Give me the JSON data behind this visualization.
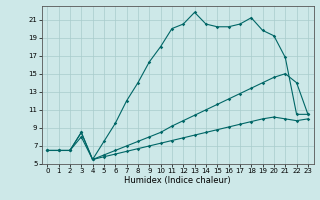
{
  "xlabel": "Humidex (Indice chaleur)",
  "background_color": "#cde8e8",
  "line_color": "#006666",
  "grid_color": "#a8cccc",
  "xlim": [
    -0.5,
    23.5
  ],
  "ylim": [
    5,
    22.5
  ],
  "xticks": [
    0,
    1,
    2,
    3,
    4,
    5,
    6,
    7,
    8,
    9,
    10,
    11,
    12,
    13,
    14,
    15,
    16,
    17,
    18,
    19,
    20,
    21,
    22,
    23
  ],
  "yticks": [
    5,
    7,
    9,
    11,
    13,
    15,
    17,
    19,
    21
  ],
  "curve3_x": [
    0,
    1,
    2,
    3,
    4,
    5,
    6,
    7,
    8,
    9,
    10,
    11,
    12,
    13,
    14,
    15,
    16,
    17,
    18,
    19,
    20,
    21,
    22,
    23
  ],
  "curve3_y": [
    6.5,
    6.5,
    6.5,
    8.5,
    5.5,
    7.5,
    9.5,
    12.0,
    14.0,
    16.3,
    18.0,
    20.0,
    20.5,
    21.8,
    20.5,
    20.2,
    20.2,
    20.5,
    21.2,
    19.8,
    19.2,
    16.8,
    10.5,
    10.5
  ],
  "curve2_x": [
    0,
    1,
    2,
    3,
    4,
    5,
    6,
    7,
    8,
    9,
    10,
    11,
    12,
    13,
    14,
    15,
    16,
    17,
    18,
    19,
    20,
    21,
    22,
    23
  ],
  "curve2_y": [
    6.5,
    6.5,
    6.5,
    8.0,
    5.5,
    6.0,
    6.5,
    7.0,
    7.5,
    8.0,
    8.5,
    9.2,
    9.8,
    10.4,
    11.0,
    11.6,
    12.2,
    12.8,
    13.4,
    14.0,
    14.6,
    15.0,
    14.0,
    10.5
  ],
  "curve1_x": [
    0,
    1,
    2,
    3,
    4,
    5,
    6,
    7,
    8,
    9,
    10,
    11,
    12,
    13,
    14,
    15,
    16,
    17,
    18,
    19,
    20,
    21,
    22,
    23
  ],
  "curve1_y": [
    6.5,
    6.5,
    6.5,
    8.5,
    5.5,
    5.8,
    6.1,
    6.4,
    6.7,
    7.0,
    7.3,
    7.6,
    7.9,
    8.2,
    8.5,
    8.8,
    9.1,
    9.4,
    9.7,
    10.0,
    10.2,
    10.0,
    9.8,
    10.0
  ],
  "tick_fontsize": 5.0,
  "xlabel_fontsize": 6.0
}
